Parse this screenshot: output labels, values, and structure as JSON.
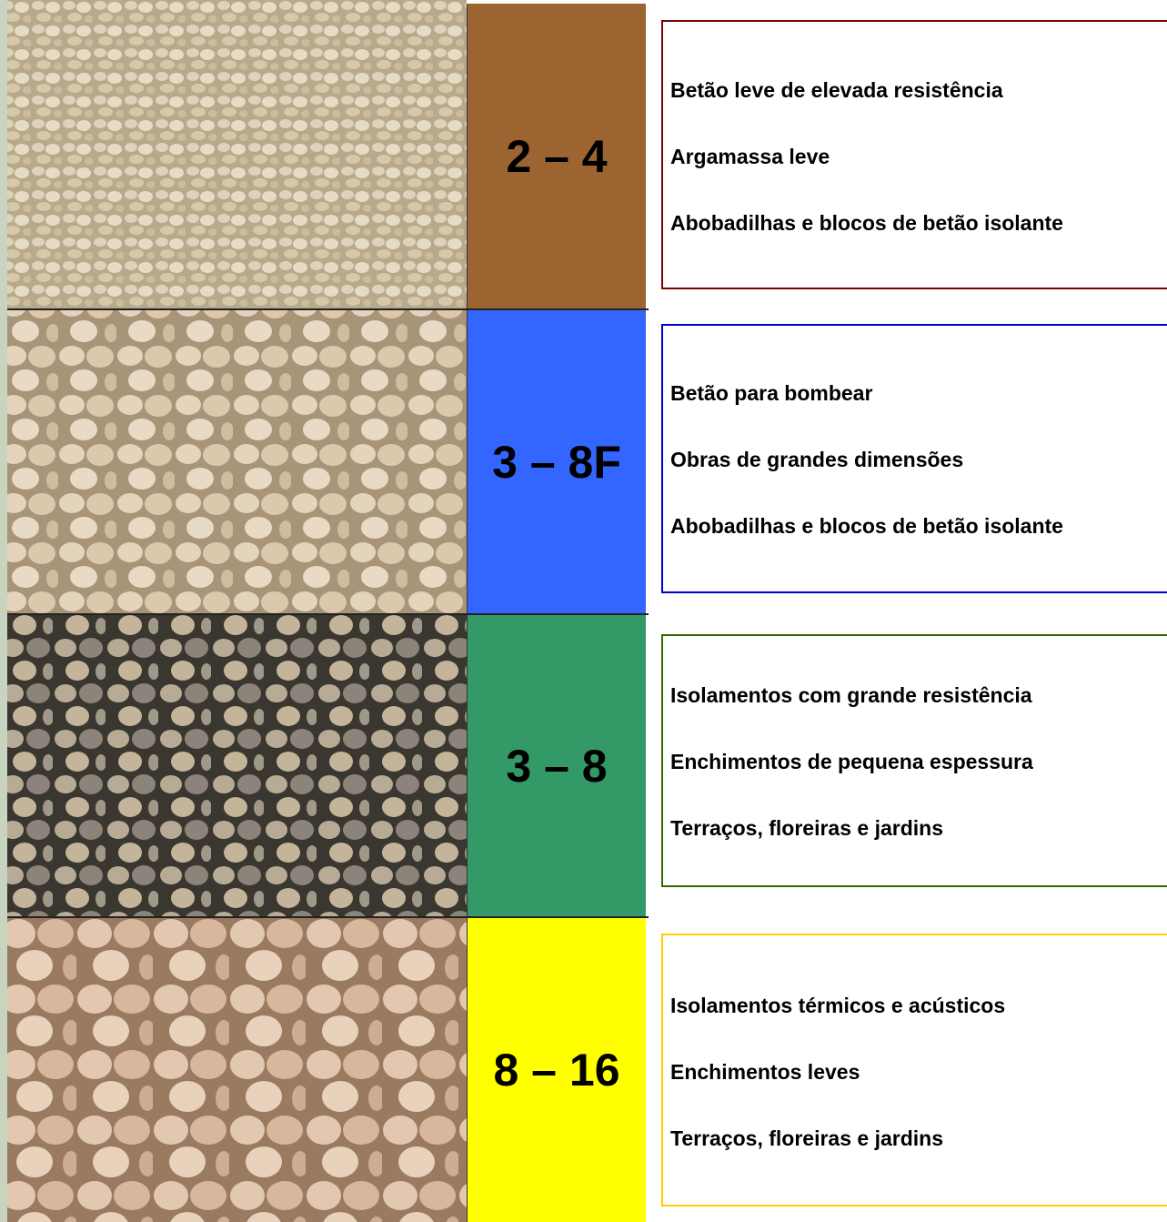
{
  "rows": [
    {
      "size": "2 – 4",
      "uses": [
        "Betão leve de elevada resistência",
        "Argamassa leve",
        "Abobadilhas e blocos de betão isolante"
      ]
    },
    {
      "size": "3 – 8F",
      "uses": [
        "Betão para bombear",
        "Obras de grandes dimensões",
        "Abobadilhas e blocos de betão isolante"
      ]
    },
    {
      "size": "3 – 8",
      "uses": [
        "Isolamentos com grande resistência",
        "Enchimentos de pequena espessura",
        "Terraços, floreiras e jardins"
      ]
    },
    {
      "size": "8 – 16",
      "uses": [
        "Isolamentos térmicos e acústicos",
        "Enchimentos leves",
        "Terraços, floreiras e jardins"
      ]
    }
  ]
}
